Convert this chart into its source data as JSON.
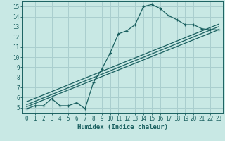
{
  "title": "",
  "xlabel": "Humidex (Indice chaleur)",
  "xlim": [
    -0.5,
    23.5
  ],
  "ylim": [
    4.5,
    15.5
  ],
  "xticks": [
    0,
    1,
    2,
    3,
    4,
    5,
    6,
    7,
    8,
    9,
    10,
    11,
    12,
    13,
    14,
    15,
    16,
    17,
    18,
    19,
    20,
    21,
    22,
    23
  ],
  "yticks": [
    5,
    6,
    7,
    8,
    9,
    10,
    11,
    12,
    13,
    14,
    15
  ],
  "bg_color": "#c8e8e4",
  "grid_color": "#aacece",
  "line_color": "#1a6060",
  "data_x": [
    0,
    1,
    2,
    3,
    4,
    5,
    6,
    7,
    8,
    9,
    10,
    11,
    12,
    13,
    14,
    15,
    16,
    17,
    18,
    19,
    20,
    21,
    22,
    23
  ],
  "data_y": [
    4.9,
    5.2,
    5.2,
    5.9,
    5.2,
    5.2,
    5.5,
    4.9,
    7.5,
    8.8,
    10.4,
    12.3,
    12.6,
    13.2,
    15.0,
    15.2,
    14.8,
    14.1,
    13.7,
    13.2,
    13.2,
    12.8,
    12.7,
    12.7
  ],
  "trend1_x": [
    0,
    23
  ],
  "trend1_y": [
    5.1,
    12.7
  ],
  "trend2_x": [
    0,
    23
  ],
  "trend2_y": [
    5.3,
    13.0
  ],
  "trend3_x": [
    0,
    23
  ],
  "trend3_y": [
    5.6,
    13.25
  ]
}
